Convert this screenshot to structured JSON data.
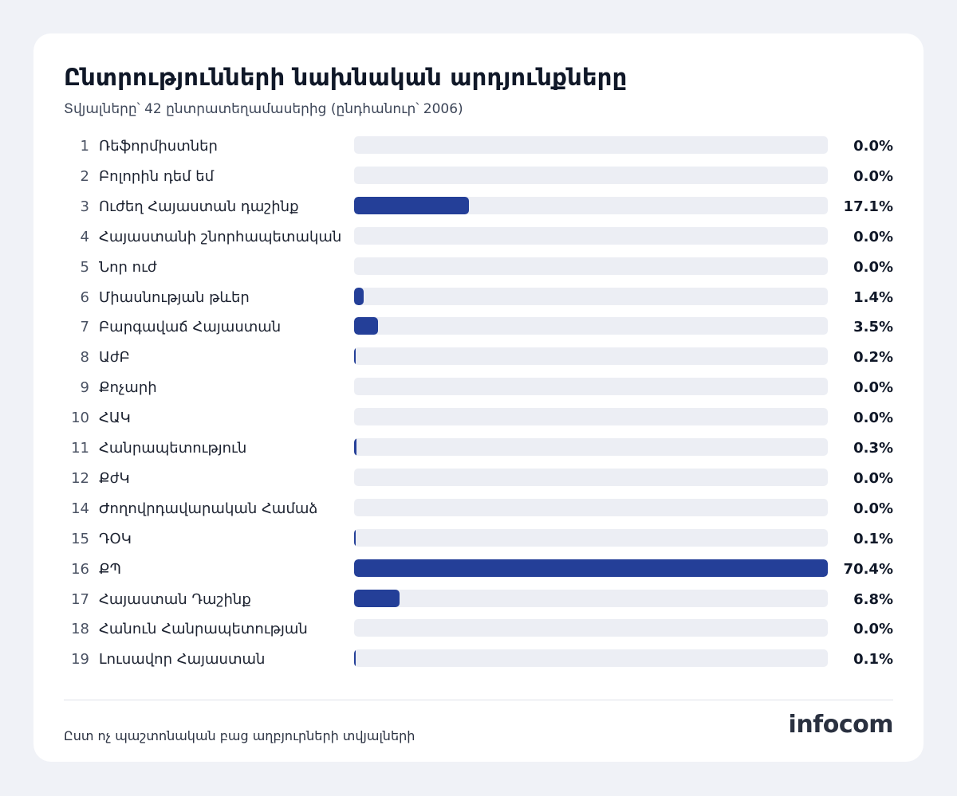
{
  "header": {
    "title": "Ընտրությունների նախնական արդյունքները",
    "subtitle": "Տվյալները՝ 42 ընտրատեղամասերից (ընդհանուր՝ 2006)"
  },
  "chart_data": {
    "type": "bar",
    "orientation": "horizontal",
    "title": "Ընտրությունների նախնական արդյունքները",
    "xlim": [
      0,
      70.4
    ],
    "bar_color": "#243f98",
    "track_color": "#eceef4",
    "rows": [
      {
        "num": "1",
        "label": "Ռեֆորմիստներ",
        "value": 0.0,
        "value_label": "0.0%"
      },
      {
        "num": "2",
        "label": "Բոլորին դեմ եմ",
        "value": 0.0,
        "value_label": "0.0%"
      },
      {
        "num": "3",
        "label": "Ուժեղ Հայաստան դաշինք",
        "value": 17.1,
        "value_label": "17.1%"
      },
      {
        "num": "4",
        "label": "Հայաստանի շնորհապետական",
        "value": 0.0,
        "value_label": "0.0%"
      },
      {
        "num": "5",
        "label": "Նոր ուժ",
        "value": 0.0,
        "value_label": "0.0%"
      },
      {
        "num": "6",
        "label": "Միասնության թևեր",
        "value": 1.4,
        "value_label": "1.4%"
      },
      {
        "num": "7",
        "label": "Բարգավաճ Հայաստան",
        "value": 3.5,
        "value_label": "3.5%"
      },
      {
        "num": "8",
        "label": "ԱժԲ",
        "value": 0.2,
        "value_label": "0.2%"
      },
      {
        "num": "9",
        "label": "Քոչարի",
        "value": 0.0,
        "value_label": "0.0%"
      },
      {
        "num": "10",
        "label": "ՀԱԿ",
        "value": 0.0,
        "value_label": "0.0%"
      },
      {
        "num": "11",
        "label": "Հանրապետություն",
        "value": 0.3,
        "value_label": "0.3%"
      },
      {
        "num": "12",
        "label": "ՔժԿ",
        "value": 0.0,
        "value_label": "0.0%"
      },
      {
        "num": "14",
        "label": "Ժողովրդավարական Համաձ",
        "value": 0.0,
        "value_label": "0.0%"
      },
      {
        "num": "15",
        "label": "ԴՕԿ",
        "value": 0.1,
        "value_label": "0.1%"
      },
      {
        "num": "16",
        "label": "ՔՊ",
        "value": 70.4,
        "value_label": "70.4%"
      },
      {
        "num": "17",
        "label": "Հայաստան Դաշինք",
        "value": 6.8,
        "value_label": "6.8%"
      },
      {
        "num": "18",
        "label": "Հանուն Հանրապետության",
        "value": 0.0,
        "value_label": "0.0%"
      },
      {
        "num": "19",
        "label": "Լուսավոր Հայաստան",
        "value": 0.1,
        "value_label": "0.1%"
      }
    ]
  },
  "footer": {
    "note": "Ըստ ոչ պաշտոնական բաց աղբյուրների տվյալների",
    "logo": "infocom"
  }
}
